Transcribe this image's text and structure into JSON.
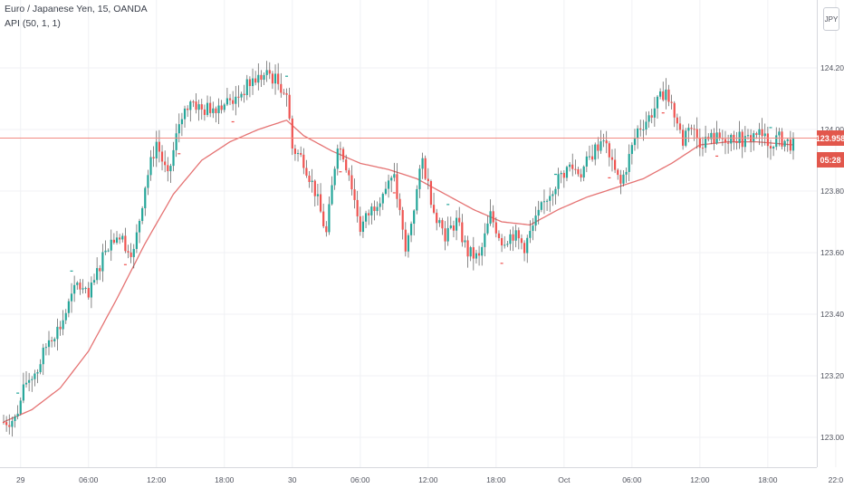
{
  "header": {
    "title": "Euro / Japanese Yen, 15, OANDA",
    "indicator": "API (50, 1, 1)",
    "currency_button": "JPY"
  },
  "last_price": "123.958",
  "countdown": "05:28",
  "colors": {
    "up_candle": "#26a69a",
    "down_candle": "#ef5350",
    "wick": "#555555",
    "ma_line": "#e57373",
    "last_price_line": "#f28b82",
    "badge": "#e2574c"
  },
  "chart_data": {
    "type": "candlestick",
    "symbol": "EURJPY",
    "timeframe": "15",
    "ylim": [
      122.96,
      124.36
    ],
    "y_ticks": [
      "124.200",
      "124.000",
      "123.800",
      "123.600",
      "123.400",
      "123.200",
      "123.000"
    ],
    "x_ticks": [
      "29",
      "06:00",
      "12:00",
      "18:00",
      "30",
      "06:00",
      "12:00",
      "18:00",
      "Oct",
      "06:00",
      "12:00",
      "18:00",
      "22:0"
    ],
    "x_tick_bars": [
      6,
      30,
      54,
      78,
      102,
      126,
      150,
      174,
      198,
      222,
      246,
      270,
      294
    ],
    "bar_count": 280,
    "last_price": 123.958,
    "anchors": [
      [
        0,
        123.05
      ],
      [
        4,
        123.06
      ],
      [
        8,
        123.18
      ],
      [
        12,
        123.22
      ],
      [
        16,
        123.32
      ],
      [
        20,
        123.36
      ],
      [
        26,
        123.5
      ],
      [
        30,
        123.45
      ],
      [
        36,
        123.62
      ],
      [
        40,
        123.66
      ],
      [
        46,
        123.6
      ],
      [
        50,
        123.82
      ],
      [
        54,
        123.96
      ],
      [
        58,
        123.84
      ],
      [
        62,
        124.02
      ],
      [
        66,
        124.1
      ],
      [
        70,
        124.06
      ],
      [
        76,
        124.08
      ],
      [
        82,
        124.1
      ],
      [
        88,
        124.16
      ],
      [
        94,
        124.18
      ],
      [
        100,
        124.12
      ],
      [
        102,
        123.94
      ],
      [
        106,
        123.9
      ],
      [
        110,
        123.8
      ],
      [
        114,
        123.66
      ],
      [
        118,
        123.96
      ],
      [
        122,
        123.86
      ],
      [
        126,
        123.68
      ],
      [
        130,
        123.74
      ],
      [
        134,
        123.8
      ],
      [
        138,
        123.84
      ],
      [
        142,
        123.6
      ],
      [
        146,
        123.8
      ],
      [
        148,
        123.9
      ],
      [
        152,
        123.74
      ],
      [
        156,
        123.66
      ],
      [
        160,
        123.7
      ],
      [
        164,
        123.6
      ],
      [
        168,
        123.58
      ],
      [
        172,
        123.72
      ],
      [
        176,
        123.64
      ],
      [
        180,
        123.66
      ],
      [
        184,
        123.62
      ],
      [
        188,
        123.7
      ],
      [
        192,
        123.78
      ],
      [
        196,
        123.84
      ],
      [
        200,
        123.88
      ],
      [
        204,
        123.86
      ],
      [
        208,
        123.92
      ],
      [
        212,
        123.98
      ],
      [
        214,
        123.9
      ],
      [
        218,
        123.82
      ],
      [
        220,
        123.88
      ],
      [
        224,
        124.0
      ],
      [
        228,
        124.04
      ],
      [
        232,
        124.1
      ],
      [
        234,
        124.14
      ],
      [
        238,
        124.02
      ],
      [
        240,
        123.96
      ],
      [
        242,
        124.02
      ],
      [
        246,
        123.96
      ],
      [
        250,
        123.97
      ],
      [
        254,
        123.97
      ],
      [
        258,
        123.98
      ],
      [
        262,
        123.96
      ],
      [
        266,
        123.99
      ],
      [
        270,
        123.96
      ],
      [
        274,
        123.97
      ],
      [
        279,
        123.95
      ]
    ],
    "ma": [
      [
        0,
        123.05
      ],
      [
        10,
        123.09
      ],
      [
        20,
        123.16
      ],
      [
        30,
        123.28
      ],
      [
        40,
        123.45
      ],
      [
        50,
        123.63
      ],
      [
        60,
        123.79
      ],
      [
        70,
        123.9
      ],
      [
        80,
        123.96
      ],
      [
        90,
        124.0
      ],
      [
        100,
        124.03
      ],
      [
        106,
        123.98
      ],
      [
        116,
        123.93
      ],
      [
        126,
        123.89
      ],
      [
        136,
        123.87
      ],
      [
        146,
        123.84
      ],
      [
        156,
        123.79
      ],
      [
        166,
        123.74
      ],
      [
        176,
        123.7
      ],
      [
        186,
        123.69
      ],
      [
        196,
        123.74
      ],
      [
        206,
        123.78
      ],
      [
        216,
        123.81
      ],
      [
        226,
        123.84
      ],
      [
        236,
        123.89
      ],
      [
        246,
        123.95
      ],
      [
        256,
        123.96
      ],
      [
        266,
        123.96
      ],
      [
        279,
        123.95
      ]
    ]
  }
}
